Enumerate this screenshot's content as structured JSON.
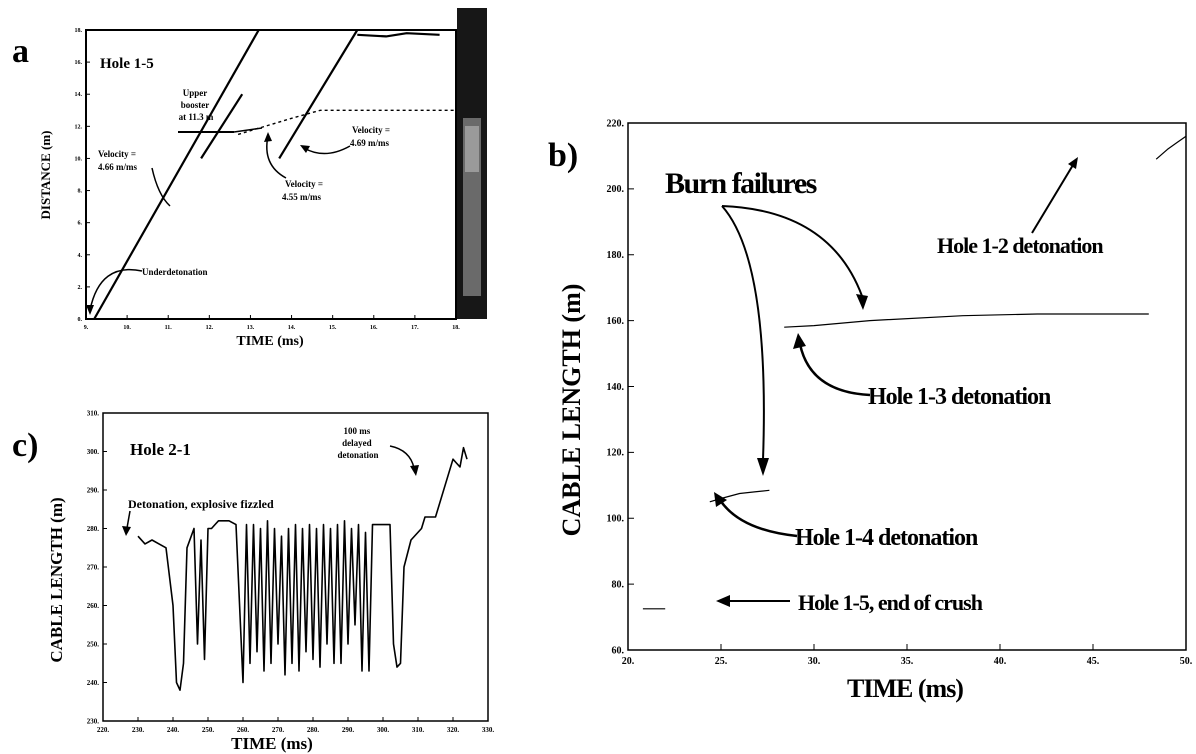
{
  "chart_data": [
    {
      "panel_label": "a",
      "type": "line",
      "title": "Hole 1-5",
      "xlabel": "TIME (ms)",
      "ylabel": "DISTANCE (m)",
      "xlim": [
        9,
        18
      ],
      "ylim": [
        0,
        18
      ],
      "x_ticks": [
        "9.",
        "10.",
        "11.",
        "12.",
        "13.",
        "14.",
        "15.",
        "16.",
        "17.",
        "18."
      ],
      "y_ticks": [
        "0.",
        "2.",
        "4.",
        "6.",
        "8.",
        "10.",
        "12.",
        "14.",
        "16.",
        "18."
      ],
      "series": [
        {
          "values": [
            [
              9.2,
              0.0
            ],
            [
              13.2,
              18.0
            ]
          ]
        },
        {
          "values": [
            [
              11.8,
              10.0
            ],
            [
              12.8,
              14.0
            ]
          ]
        },
        {
          "values": [
            [
              13.7,
              10.0
            ],
            [
              15.6,
              18.0
            ]
          ]
        },
        {
          "values": [
            [
              15.6,
              17.7
            ],
            [
              16.3,
              17.6
            ],
            [
              16.8,
              17.8
            ],
            [
              17.6,
              17.7
            ]
          ]
        },
        {
          "values": [
            [
              12.7,
              11.5
            ],
            [
              14.0,
              12.5
            ],
            [
              14.7,
              13.0
            ],
            [
              18.0,
              13.0
            ]
          ]
        }
      ],
      "annotations": [
        {
          "text": "Upper booster at 11.3 m"
        },
        {
          "text": "Velocity = 4.66 m/ms"
        },
        {
          "text": "Velocity = 4.55 m/ms"
        },
        {
          "text": "Velocity = 4.69 m/ms"
        },
        {
          "text": "Underdetonation"
        }
      ],
      "grid": false
    },
    {
      "panel_label": "b)",
      "type": "line",
      "title": "",
      "xlabel": "TIME (ms)",
      "ylabel": "CABLE LENGTH (m)",
      "xlim": [
        20,
        50
      ],
      "ylim": [
        60,
        220
      ],
      "x_ticks": [
        "20.",
        "25.",
        "30.",
        "35.",
        "40.",
        "45.",
        "50."
      ],
      "y_ticks": [
        "60.",
        "80.",
        "100.",
        "120.",
        "140.",
        "160.",
        "180.",
        "200.",
        "220."
      ],
      "series": [
        {
          "values": [
            [
              20.8,
              72.5
            ],
            [
              22.0,
              72.5
            ]
          ]
        },
        {
          "values": [
            [
              24.4,
              105.0
            ],
            [
              25.0,
              106.0
            ],
            [
              26.0,
              107.5
            ],
            [
              26.8,
              108.0
            ],
            [
              27.6,
              108.5
            ]
          ]
        },
        {
          "values": [
            [
              28.4,
              158.0
            ],
            [
              30.0,
              158.5
            ],
            [
              33.0,
              160.0
            ],
            [
              38.0,
              161.5
            ],
            [
              42.0,
              162.0
            ],
            [
              48.0,
              162.0
            ]
          ]
        },
        {
          "values": [
            [
              48.4,
              209.0
            ],
            [
              49.0,
              212.0
            ],
            [
              49.5,
              214.0
            ],
            [
              50.0,
              216.0
            ]
          ]
        }
      ],
      "annotations": [
        {
          "text": "Burn failures"
        },
        {
          "text": "Hole 1-2 detonation"
        },
        {
          "text": "Hole 1-3 detonation"
        },
        {
          "text": "Hole 1-4 detonation"
        },
        {
          "text": "Hole 1-5, end of crush"
        }
      ],
      "grid": false
    },
    {
      "panel_label": "c)",
      "type": "line",
      "title": "Hole 2-1",
      "xlabel": "TIME (ms)",
      "ylabel": "CABLE LENGTH (m)",
      "xlim": [
        220,
        330
      ],
      "ylim": [
        230,
        310
      ],
      "x_ticks": [
        "220.",
        "230.",
        "240.",
        "250.",
        "260.",
        "270.",
        "280.",
        "290.",
        "300.",
        "310.",
        "320.",
        "330."
      ],
      "y_ticks": [
        "230.",
        "240.",
        "250.",
        "260.",
        "270.",
        "280.",
        "290.",
        "300.",
        "310."
      ],
      "series": [
        {
          "values": [
            [
              230,
              278
            ],
            [
              232,
              276
            ],
            [
              234,
              277
            ],
            [
              236,
              276
            ],
            [
              238,
              275
            ],
            [
              240,
              260
            ],
            [
              241,
              240
            ],
            [
              242,
              238
            ],
            [
              243,
              245
            ],
            [
              244,
              275
            ],
            [
              246,
              280
            ],
            [
              247,
              250
            ],
            [
              248,
              277
            ],
            [
              249,
              246
            ],
            [
              250,
              280
            ],
            [
              251,
              280
            ],
            [
              252,
              281
            ],
            [
              253,
              282
            ],
            [
              256,
              282
            ],
            [
              258,
              281
            ],
            [
              260,
              240
            ],
            [
              261,
              281
            ],
            [
              262,
              245
            ],
            [
              263,
              281
            ],
            [
              264,
              248
            ],
            [
              265,
              280
            ],
            [
              266,
              243
            ],
            [
              267,
              282
            ],
            [
              268,
              245
            ],
            [
              269,
              280
            ],
            [
              270,
              250
            ],
            [
              271,
              278
            ],
            [
              272,
              242
            ],
            [
              273,
              280
            ],
            [
              274,
              245
            ],
            [
              275,
              281
            ],
            [
              276,
              243
            ],
            [
              277,
              280
            ],
            [
              278,
              248
            ],
            [
              279,
              281
            ],
            [
              280,
              246
            ],
            [
              281,
              280
            ],
            [
              282,
              244
            ],
            [
              283,
              281
            ],
            [
              284,
              250
            ],
            [
              285,
              280
            ],
            [
              286,
              245
            ],
            [
              287,
              281
            ],
            [
              288,
              245
            ],
            [
              289,
              282
            ],
            [
              290,
              250
            ],
            [
              291,
              280
            ],
            [
              292,
              255
            ],
            [
              293,
              281
            ],
            [
              294,
              243
            ],
            [
              295,
              279
            ],
            [
              296,
              243
            ],
            [
              297,
              281
            ],
            [
              300,
              281
            ],
            [
              302,
              281
            ],
            [
              303,
              250
            ],
            [
              304,
              244
            ],
            [
              305,
              245
            ],
            [
              306,
              270
            ],
            [
              308,
              277
            ],
            [
              311,
              280
            ],
            [
              312,
              283
            ],
            [
              315,
              283
            ],
            [
              320,
              298
            ],
            [
              321,
              297
            ],
            [
              322,
              296
            ],
            [
              323,
              301
            ],
            [
              324,
              298
            ]
          ]
        }
      ],
      "annotations": [
        {
          "text": "Detonation, explosive fizzled"
        },
        {
          "text": "100 ms delayed detonation"
        }
      ],
      "grid": false
    }
  ]
}
